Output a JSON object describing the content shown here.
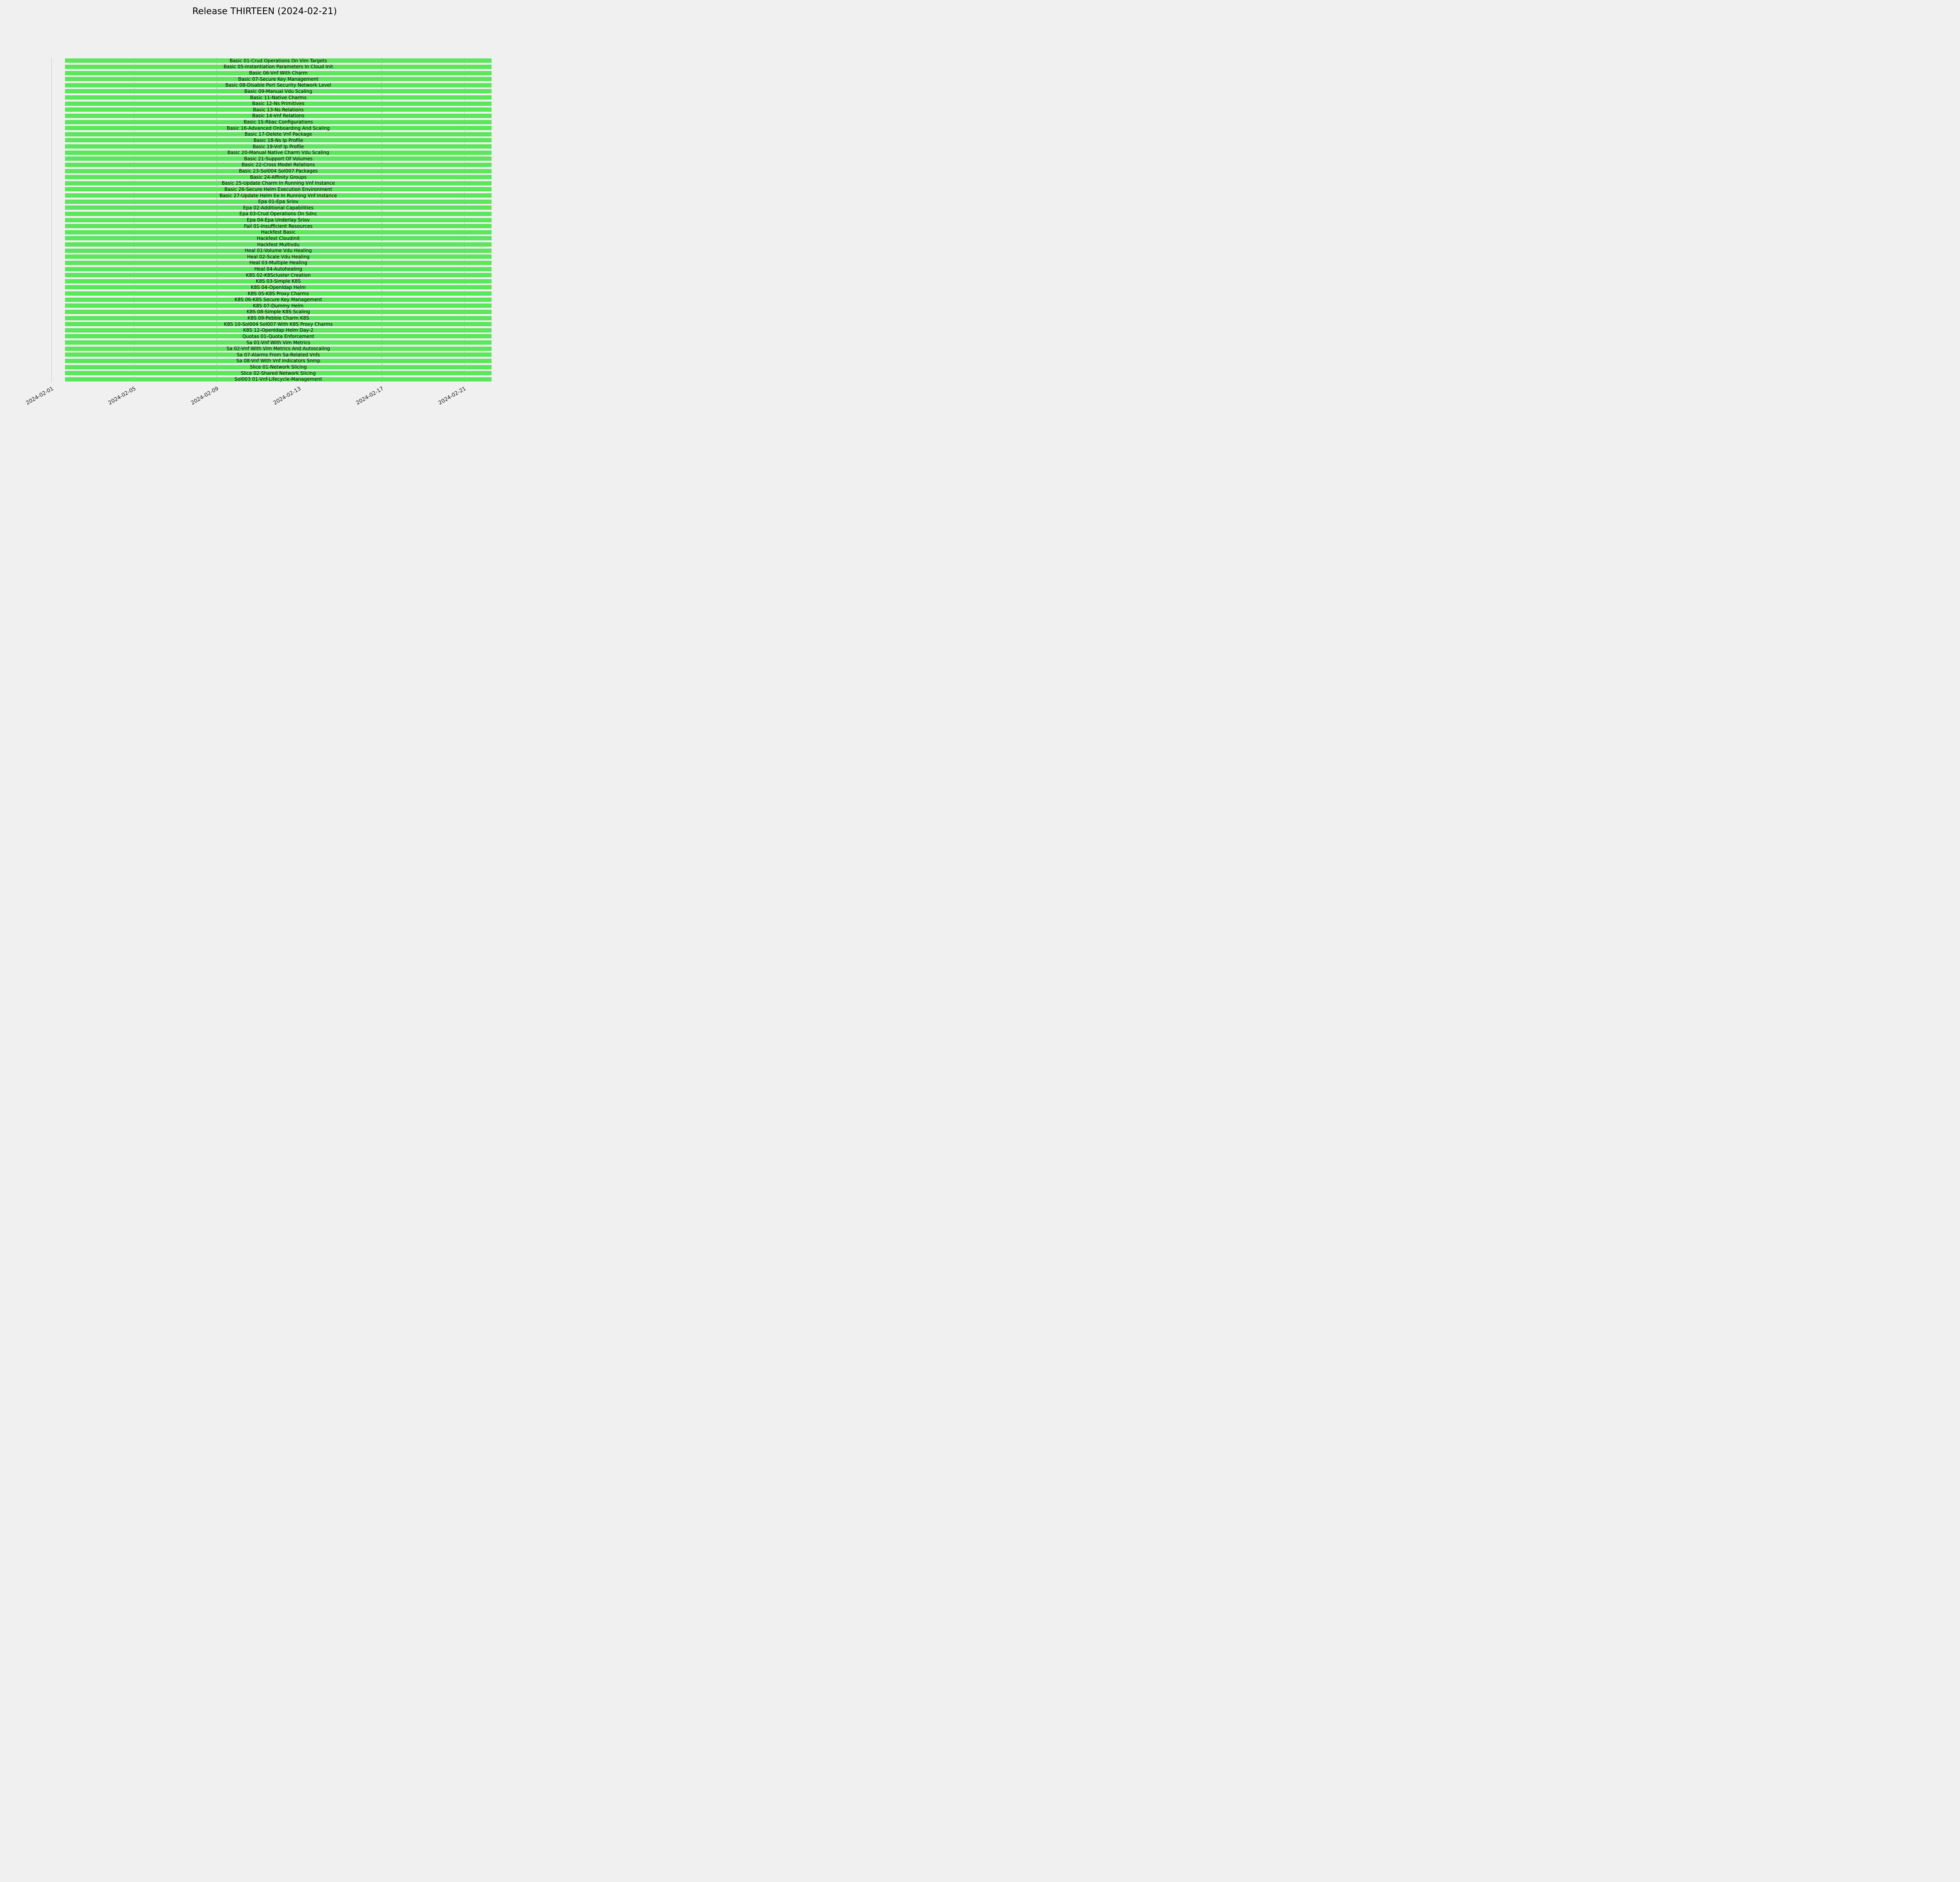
{
  "chart_data": {
    "type": "bar",
    "subtype": "gantt",
    "orientation": "horizontal",
    "title": "Release THIRTEEN (2024-02-21)",
    "background_color": "#f0f0f0",
    "bar_color": "#5ce65c",
    "grid": true,
    "grid_color": "#cbcbcb",
    "legend": "none",
    "x_axis": {
      "tick_labels": [
        "2024-02-01",
        "2024-02-05",
        "2024-02-09",
        "2024-02-13",
        "2024-02-17",
        "2024-02-21"
      ],
      "range": [
        "2024-02-01",
        "2024-02-22"
      ],
      "tick_rotation_deg": 30
    },
    "bar_start": "2024-02-01",
    "bar_end": "2024-02-22",
    "categories": [
      "Basic 01-Crud Operations On Vim Targets",
      "Basic 05-Instantiation Parameters In Cloud Init",
      "Basic 06-Vnf With Charm",
      "Basic 07-Secure Key Management",
      "Basic 08-Disable Port Security Network Level",
      "Basic 09-Manual Vdu Scaling",
      "Basic 11-Native Charms",
      "Basic 12-Ns Primitives",
      "Basic 13-Ns Relations",
      "Basic 14-Vnf Relations",
      "Basic 15-Rbac Configurations",
      "Basic 16-Advanced Onboarding And Scaling",
      "Basic 17-Delete Vnf Package",
      "Basic 18-Ns Ip Profile",
      "Basic 19-Vnf Ip Profile",
      "Basic 20-Manual Native Charm Vdu Scaling",
      "Basic 21-Support Of Volumes",
      "Basic 22-Cross Model Relations",
      "Basic 23-Sol004 Sol007 Packages",
      "Basic 24-Affinity Groups",
      "Basic 25-Update Charm In Running Vnf Instance",
      "Basic 26-Secure Helm Execution Environment",
      "Basic 27-Update Helm Ee In Running Vnf Instance",
      "Epa 01-Epa Sriov",
      "Epa 02-Additional Capabilities",
      "Epa 03-Crud Operations On Sdnc",
      "Epa 04-Epa Underlay Sriov",
      "Fail 01-Insufficient Resources",
      "Hackfest Basic",
      "Hackfest Cloudinit",
      "Hackfest Multivdu",
      "Heal 01-Volume Vdu Healing",
      "Heal 02-Scale Vdu Healing",
      "Heal 03-Multiple Healing",
      "Heal 04-Autohealing",
      "K8S 02-K8Scluster Creation",
      "K8S 03-Simple K8S",
      "K8S 04-Openldap Helm",
      "K8S 05-K8S Proxy Charms",
      "K8S 06-K8S Secure Key Management",
      "K8S 07-Dummy Helm",
      "K8S 08-Simple K8S Scaling",
      "K8S 09-Pebble Charm K8S",
      "K8S 10-Sol004 Sol007 With K8S Proxy Charms",
      "K8S 12-Openldap Helm Day-2",
      "Quotas 01-Quota Enforcement",
      "Sa 01-Vnf With Vim Metrics",
      "Sa 02-Vnf With Vim Metrics And Autoscaling",
      "Sa 07-Alarms From Sa-Related Vnfs",
      "Sa 08-Vnf With Vnf Indicators Snmp",
      "Slice 01-Network Slicing",
      "Slice 02-Shared Network Slicing",
      "Sol003 01-Vnf-Lifecycle-Management"
    ]
  }
}
